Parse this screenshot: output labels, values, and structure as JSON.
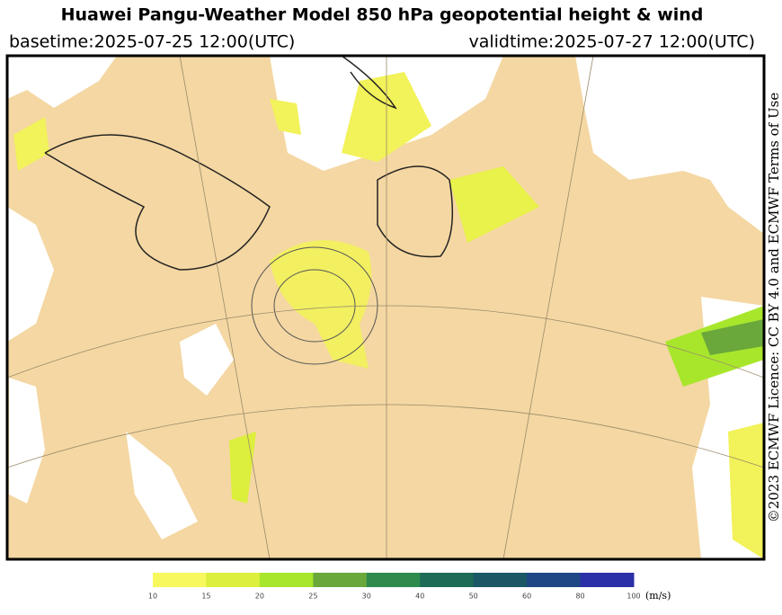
{
  "header": {
    "title": "Huawei Pangu-Weather Model 850 hPa geopotential height & wind",
    "basetime": "basetime:2025-07-25 12:00(UTC)",
    "validtime": "validtime:2025-07-27 12:00(UTC)"
  },
  "credit": "©2023 ECMWF Licence: CC BY 4.0 and ECMWF Terms of Use",
  "colorbar": {
    "ticks": [
      10,
      15,
      20,
      25,
      30,
      40,
      50,
      60,
      80,
      100
    ],
    "colors": [
      "#f7f75e",
      "#dcef3c",
      "#a8e62c",
      "#6aa83c",
      "#2f8a4e",
      "#1e6b58",
      "#1b5866",
      "#1f4786",
      "#2b30a8"
    ],
    "unit": "(m/s)"
  }
}
